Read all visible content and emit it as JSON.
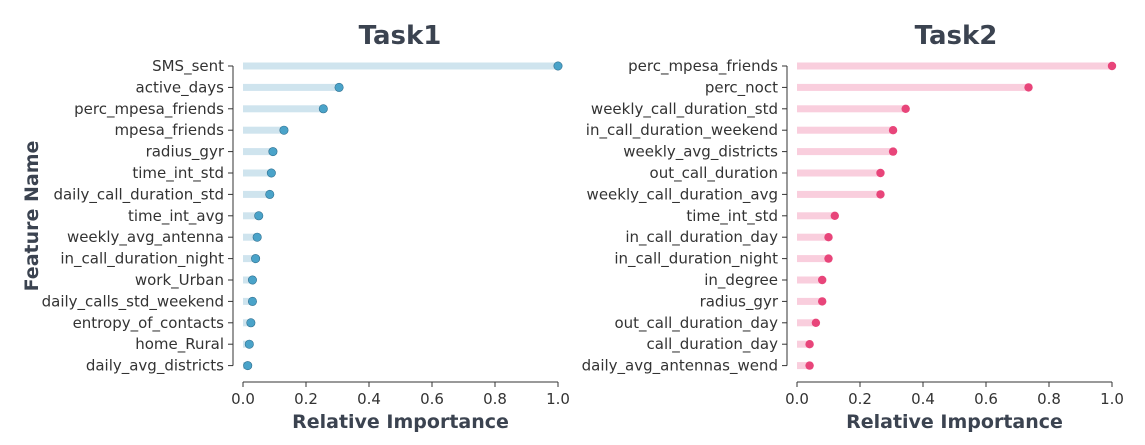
{
  "y_axis_title": "Feature Name",
  "chart_data": [
    {
      "type": "lollipop",
      "title": "Task1",
      "xlabel": "Relative Importance",
      "xlim": [
        0,
        1.0
      ],
      "xticks": [
        "0.0",
        "0.2",
        "0.4",
        "0.6",
        "0.8",
        "1.0"
      ],
      "color": "#4aa3c9",
      "bar_color": "#cfe4ee",
      "categories": [
        "SMS_sent",
        "active_days",
        "perc_mpesa_friends",
        "mpesa_friends",
        "radius_gyr",
        "time_int_std",
        "daily_call_duration_std",
        "time_int_avg",
        "weekly_avg_antenna",
        "in_call_duration_night",
        "work_Urban",
        "daily_calls_std_weekend",
        "entropy_of_contacts",
        "home_Rural",
        "daily_avg_districts"
      ],
      "values": [
        1.0,
        0.305,
        0.255,
        0.13,
        0.095,
        0.09,
        0.085,
        0.05,
        0.045,
        0.04,
        0.03,
        0.03,
        0.025,
        0.02,
        0.015
      ]
    },
    {
      "type": "lollipop",
      "title": "Task2",
      "xlabel": "Relative Importance",
      "xlim": [
        0,
        1.0
      ],
      "xticks": [
        "0.0",
        "0.2",
        "0.4",
        "0.6",
        "0.8",
        "1.0"
      ],
      "color": "#e8457a",
      "bar_color": "#f9cedd",
      "categories": [
        "perc_mpesa_friends",
        "perc_noct",
        "weekly_call_duration_std",
        "in_call_duration_weekend",
        "weekly_avg_districts",
        "out_call_duration",
        "weekly_call_duration_avg",
        "time_int_std",
        "in_call_duration_day",
        "in_call_duration_night",
        "in_degree",
        "radius_gyr",
        "out_call_duration_day",
        "call_duration_day",
        "daily_avg_antennas_wend"
      ],
      "values": [
        1.0,
        0.735,
        0.345,
        0.305,
        0.305,
        0.265,
        0.265,
        0.12,
        0.1,
        0.1,
        0.08,
        0.08,
        0.06,
        0.04,
        0.04
      ]
    }
  ]
}
